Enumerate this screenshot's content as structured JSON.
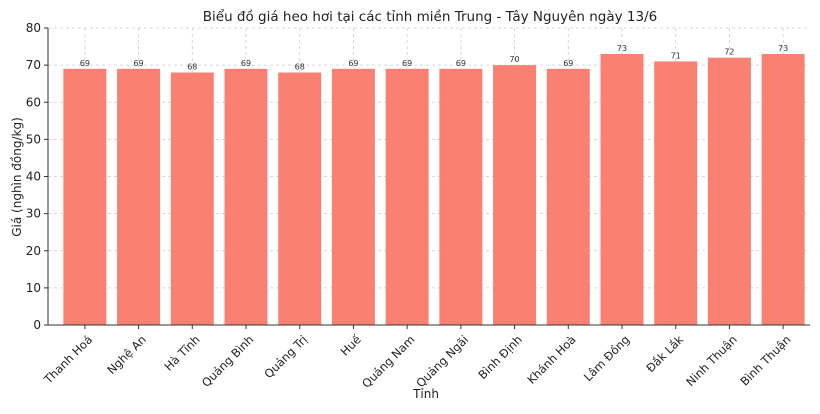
{
  "chart_data": {
    "type": "bar",
    "title": "Biểu đồ giá heo hơi tại các tỉnh miền Trung - Tây Nguyên ngày 13/6",
    "xlabel": "Tỉnh",
    "ylabel": "Giá (nghìn đồng/kg)",
    "categories": [
      "Thanh Hoá",
      "Nghệ An",
      "Hà Tĩnh",
      "Quảng Bình",
      "Quảng Trị",
      "Huế",
      "Quảng Nam",
      "Quảng Ngãi",
      "Bình Định",
      "Khánh Hoà",
      "Lâm Đồng",
      "Đắk Lắk",
      "Ninh Thuận",
      "Bình Thuận"
    ],
    "values": [
      69,
      69,
      68,
      69,
      68,
      69,
      69,
      69,
      70,
      69,
      73,
      71,
      72,
      73
    ],
    "data_labels": [
      "69",
      "69",
      "68",
      "69",
      "68",
      "69",
      "69",
      "69",
      "70",
      "69",
      "73",
      "71",
      "72",
      "73"
    ],
    "ylim": [
      0,
      80
    ],
    "yticks": [
      "0",
      "10",
      "20",
      "30",
      "40",
      "50",
      "60",
      "70",
      "80"
    ],
    "grid": true,
    "colors": {
      "bar": "#fa8072",
      "axis": "#333333",
      "grid": "#cccccc"
    }
  }
}
